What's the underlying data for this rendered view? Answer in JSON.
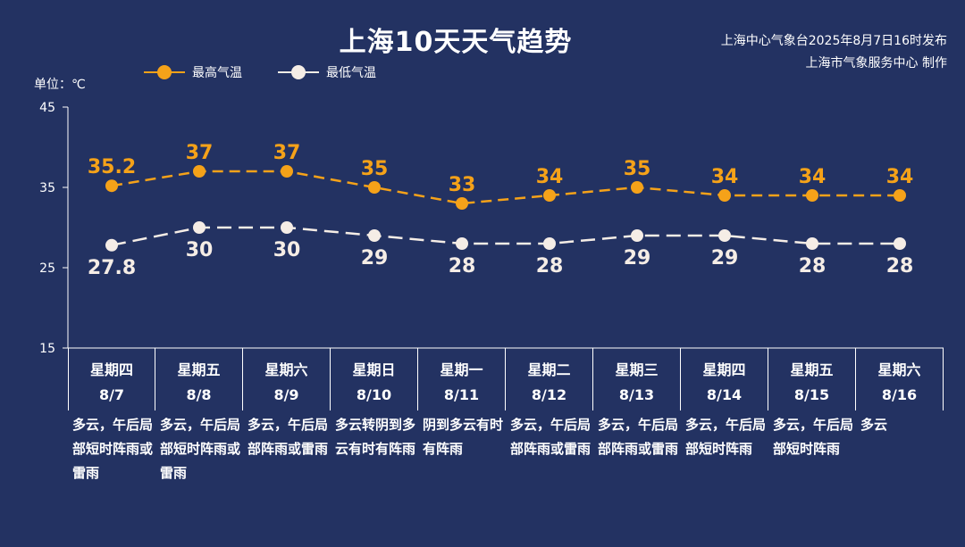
{
  "title": "上海10天天气趋势",
  "source": [
    "上海中心气象台2025年8月7日16时发布",
    "上海市气象服务中心 制作"
  ],
  "unit": "单位：℃",
  "colors": {
    "background": "#233262",
    "high": "#f5a219",
    "low": "#f5ede6"
  },
  "chart_data": {
    "type": "line",
    "title": "上海10天天气趋势",
    "ylabel": "单位：℃",
    "ylim": [
      15,
      45
    ],
    "yticks": [
      "45",
      "35",
      "25",
      "15"
    ],
    "legend_position": "top-left",
    "categories": [
      "8/7",
      "8/8",
      "8/9",
      "8/10",
      "8/11",
      "8/12",
      "8/13",
      "8/14",
      "8/15",
      "8/16"
    ],
    "series": [
      {
        "name": "最高气温",
        "values": [
          35.2,
          37,
          37,
          35,
          33,
          34,
          35,
          34,
          34,
          34
        ],
        "labels": [
          "35.2",
          "37",
          "37",
          "35",
          "33",
          "34",
          "35",
          "34",
          "34",
          "34"
        ]
      },
      {
        "name": "最低气温",
        "values": [
          27.8,
          30,
          30,
          29,
          28,
          28,
          29,
          29,
          28,
          28
        ],
        "labels": [
          "27.8",
          "30",
          "30",
          "29",
          "28",
          "28",
          "29",
          "29",
          "28",
          "28"
        ]
      }
    ]
  },
  "days": [
    {
      "weekday": "星期四",
      "date": "8/7",
      "weather": "多云，午后局部短时阵雨或雷雨"
    },
    {
      "weekday": "星期五",
      "date": "8/8",
      "weather": "多云，午后局部短时阵雨或雷雨"
    },
    {
      "weekday": "星期六",
      "date": "8/9",
      "weather": "多云，午后局部阵雨或雷雨"
    },
    {
      "weekday": "星期日",
      "date": "8/10",
      "weather": "多云转阴到多云有时有阵雨"
    },
    {
      "weekday": "星期一",
      "date": "8/11",
      "weather": "阴到多云有时有阵雨"
    },
    {
      "weekday": "星期二",
      "date": "8/12",
      "weather": "多云，午后局部阵雨或雷雨"
    },
    {
      "weekday": "星期三",
      "date": "8/13",
      "weather": "多云，午后局部阵雨或雷雨"
    },
    {
      "weekday": "星期四",
      "date": "8/14",
      "weather": "多云，午后局部短时阵雨"
    },
    {
      "weekday": "星期五",
      "date": "8/15",
      "weather": "多云，午后局部短时阵雨"
    },
    {
      "weekday": "星期六",
      "date": "8/16",
      "weather": "多云"
    }
  ]
}
